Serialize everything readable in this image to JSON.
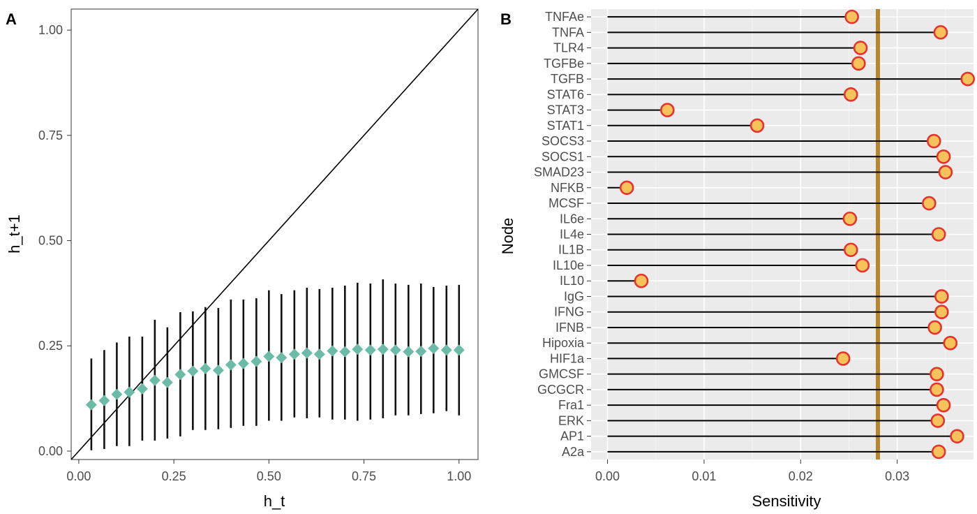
{
  "colors": {
    "diamond": "#6cbba6",
    "point_fill": "#f7c25a",
    "point_stroke": "#e8322d",
    "threshold": "#b8862e",
    "panel_b_bg": "#ebebeb"
  },
  "chart_data": [
    {
      "panel": "A",
      "type": "scatter",
      "xlabel": "h_t",
      "ylabel": "h_t+1",
      "xlim": [
        -0.02,
        1.05
      ],
      "ylim": [
        -0.02,
        1.05
      ],
      "xticks": [
        "0.00",
        "0.25",
        "0.50",
        "0.75",
        "1.00"
      ],
      "yticks": [
        "0.00",
        "0.25",
        "0.50",
        "0.75",
        "1.00"
      ],
      "reference_line": "y = x",
      "series": [
        {
          "name": "mean",
          "x": [
            0.033,
            0.067,
            0.1,
            0.133,
            0.167,
            0.2,
            0.233,
            0.267,
            0.3,
            0.333,
            0.367,
            0.4,
            0.433,
            0.467,
            0.5,
            0.533,
            0.567,
            0.6,
            0.633,
            0.667,
            0.7,
            0.733,
            0.767,
            0.8,
            0.833,
            0.867,
            0.9,
            0.933,
            0.967,
            1.0
          ],
          "y": [
            0.11,
            0.12,
            0.135,
            0.14,
            0.148,
            0.168,
            0.163,
            0.182,
            0.19,
            0.196,
            0.192,
            0.205,
            0.208,
            0.213,
            0.225,
            0.222,
            0.23,
            0.233,
            0.23,
            0.238,
            0.236,
            0.242,
            0.24,
            0.242,
            0.24,
            0.236,
            0.237,
            0.244,
            0.24,
            0.24
          ],
          "ymin": [
            0.002,
            0.005,
            0.012,
            0.012,
            0.025,
            0.025,
            0.03,
            0.035,
            0.05,
            0.05,
            0.052,
            0.055,
            0.06,
            0.06,
            0.072,
            0.072,
            0.08,
            0.078,
            0.08,
            0.075,
            0.075,
            0.072,
            0.075,
            0.078,
            0.085,
            0.085,
            0.088,
            0.09,
            0.095,
            0.085
          ],
          "ymax": [
            0.22,
            0.24,
            0.258,
            0.272,
            0.272,
            0.312,
            0.294,
            0.33,
            0.332,
            0.342,
            0.34,
            0.36,
            0.36,
            0.363,
            0.382,
            0.373,
            0.382,
            0.388,
            0.385,
            0.388,
            0.393,
            0.4,
            0.398,
            0.408,
            0.398,
            0.395,
            0.398,
            0.39,
            0.393,
            0.395
          ]
        }
      ]
    },
    {
      "panel": "B",
      "type": "lollipop",
      "xlabel": "Sensitivity",
      "ylabel": "Node",
      "xlim": [
        -0.0017,
        0.0379
      ],
      "xticks": [
        "0.00",
        "0.01",
        "0.02",
        "0.03"
      ],
      "threshold": 0.028,
      "categories": [
        "TNFAe",
        "TNFA",
        "TLR4",
        "TGFBe",
        "TGFB",
        "STAT6",
        "STAT3",
        "STAT1",
        "SOCS3",
        "SOCS1",
        "SMAD23",
        "NFKB",
        "MCSF",
        "IL6e",
        "IL4e",
        "IL1B",
        "IL10e",
        "IL10",
        "IgG",
        "IFNG",
        "IFNB",
        "Hipoxia",
        "HIF1a",
        "GMCSF",
        "GCGCR",
        "Fra1",
        "ERK",
        "AP1",
        "A2a"
      ],
      "values": [
        0.0253,
        0.0345,
        0.0262,
        0.026,
        0.0373,
        0.0252,
        0.0062,
        0.0155,
        0.0338,
        0.0348,
        0.035,
        0.002,
        0.0333,
        0.0251,
        0.0343,
        0.0252,
        0.0264,
        0.0035,
        0.0346,
        0.0346,
        0.0339,
        0.0355,
        0.0244,
        0.0341,
        0.0341,
        0.0348,
        0.0342,
        0.0362,
        0.0343
      ]
    }
  ],
  "labels": {
    "panel_a": "A",
    "panel_b": "B"
  }
}
